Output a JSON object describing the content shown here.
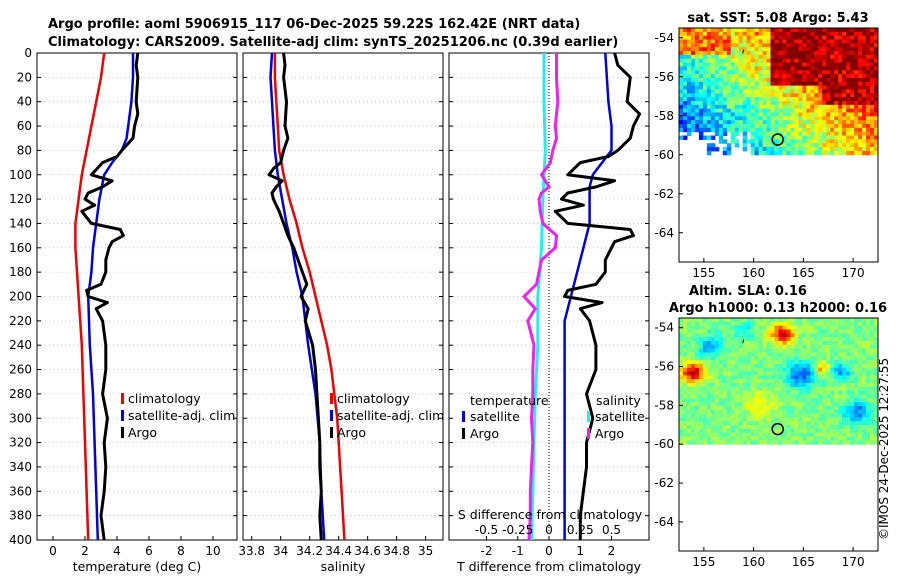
{
  "title": {
    "line1": "Argo profile: aoml 5906915_117 06-Dec-2025 59.22S 162.42E (NRT data)",
    "line2": "Climatology: CARS2009. Satellite-adj clim: synTS_20251206.nc (0.39d earlier)"
  },
  "colors": {
    "climatology": "#ee0000",
    "satellite": "#0000dd",
    "argo": "#000000",
    "sat_salinity": "#22eeee",
    "argo_salinity_diff": "#ee22ee"
  },
  "depth_ticks": [
    "0",
    "20",
    "40",
    "60",
    "80",
    "100",
    "120",
    "140",
    "160",
    "180",
    "200",
    "220",
    "240",
    "260",
    "280",
    "300",
    "320",
    "340",
    "360",
    "380",
    "400"
  ],
  "chart_data": [
    {
      "type": "line",
      "name": "temperature",
      "xlabel": "temperature (deg C)",
      "ylabel": "depth",
      "xlim": [
        -1,
        11.5
      ],
      "ylim": [
        400,
        0
      ],
      "xticks": [
        "0",
        "2",
        "4",
        "6",
        "8",
        "10"
      ],
      "legend": [
        "climatology",
        "satellite-adj. clim",
        "Argo"
      ],
      "series": [
        {
          "name": "climatology",
          "depth": [
            0,
            20,
            40,
            60,
            80,
            100,
            120,
            140,
            160,
            180,
            200,
            240,
            280,
            320,
            360,
            400
          ],
          "values": [
            3.2,
            3.0,
            2.7,
            2.4,
            2.1,
            1.8,
            1.6,
            1.4,
            1.4,
            1.5,
            1.6,
            1.8,
            1.9,
            2.0,
            2.1,
            2.2
          ]
        },
        {
          "name": "satellite-adj. clim",
          "depth": [
            0,
            20,
            40,
            60,
            70,
            80,
            90,
            100,
            120,
            140,
            160,
            180,
            200,
            240,
            280,
            320,
            360,
            400
          ],
          "values": [
            5.0,
            5.0,
            4.9,
            4.7,
            4.6,
            4.3,
            3.7,
            3.2,
            2.9,
            2.7,
            2.5,
            2.4,
            2.2,
            2.3,
            2.5,
            2.6,
            2.7,
            2.8
          ]
        },
        {
          "name": "Argo",
          "depth": [
            0,
            10,
            20,
            40,
            50,
            60,
            70,
            80,
            85,
            90,
            100,
            105,
            110,
            115,
            120,
            125,
            130,
            140,
            145,
            150,
            155,
            160,
            170,
            180,
            190,
            195,
            200,
            205,
            210,
            220,
            240,
            260,
            280,
            300,
            320,
            340,
            360,
            380,
            400
          ],
          "values": [
            5.3,
            5.2,
            5.3,
            5.2,
            5.3,
            5.1,
            5.0,
            4.3,
            4.0,
            3.1,
            2.4,
            3.7,
            3.1,
            2.2,
            2.0,
            2.6,
            1.8,
            2.4,
            4.2,
            4.4,
            3.7,
            3.5,
            3.3,
            3.3,
            3.0,
            2.1,
            2.2,
            3.4,
            2.7,
            3.1,
            3.3,
            3.3,
            3.1,
            3.4,
            3.2,
            3.3,
            3.2,
            3.0,
            3.2
          ]
        }
      ]
    },
    {
      "type": "line",
      "name": "salinity",
      "xlabel": "salinity",
      "ylabel": "depth",
      "xlim": [
        33.74,
        35.12
      ],
      "ylim": [
        400,
        0
      ],
      "xticks": [
        "33.8",
        "34",
        "34.2",
        "34.4",
        "34.6",
        "34.8",
        "35"
      ],
      "legend": [
        "climatology",
        "satellite-adj. clim",
        "Argo"
      ],
      "series": [
        {
          "name": "climatology",
          "depth": [
            0,
            20,
            40,
            60,
            80,
            100,
            120,
            140,
            160,
            180,
            200,
            220,
            240,
            260,
            280,
            300,
            320,
            340,
            360,
            380,
            400
          ],
          "values": [
            33.96,
            33.96,
            33.97,
            33.98,
            33.99,
            34.02,
            34.06,
            34.11,
            34.15,
            34.2,
            34.24,
            34.28,
            34.32,
            34.35,
            34.37,
            34.39,
            34.4,
            34.41,
            34.42,
            34.43,
            34.44
          ]
        },
        {
          "name": "satellite-adj. clim",
          "depth": [
            0,
            20,
            40,
            60,
            80,
            100,
            120,
            140,
            160,
            180,
            200,
            240,
            280,
            320,
            360,
            400
          ],
          "values": [
            33.94,
            33.93,
            33.94,
            33.95,
            33.96,
            33.98,
            34.01,
            34.04,
            34.08,
            34.11,
            34.15,
            34.19,
            34.24,
            34.27,
            34.28,
            34.3
          ]
        },
        {
          "name": "Argo",
          "depth": [
            0,
            10,
            20,
            40,
            60,
            70,
            80,
            90,
            95,
            100,
            105,
            110,
            115,
            120,
            130,
            140,
            150,
            160,
            170,
            180,
            190,
            200,
            210,
            220,
            240,
            260,
            280,
            300,
            320,
            340,
            360,
            380,
            400
          ],
          "values": [
            34.02,
            34.03,
            34.02,
            34.04,
            34.03,
            34.05,
            34.02,
            34.0,
            33.95,
            33.92,
            34.01,
            33.97,
            33.94,
            33.95,
            33.99,
            34.02,
            34.05,
            34.09,
            34.12,
            34.15,
            34.18,
            34.14,
            34.19,
            34.17,
            34.22,
            34.24,
            34.25,
            34.26,
            34.27,
            34.27,
            34.28,
            34.27,
            34.28
          ]
        }
      ]
    },
    {
      "type": "line",
      "name": "difference",
      "xlabel": "T difference from climatology",
      "xlabel_top": "S difference from climatology",
      "ylabel": "depth",
      "xlim": [
        -3.2,
        3.2
      ],
      "ylim": [
        400,
        0
      ],
      "xticks": [
        "-2",
        "-1",
        "0",
        "1",
        "2"
      ],
      "xticks_top": [
        "-0.5",
        "-0.25",
        "0",
        "0.25",
        "0.5"
      ],
      "legend_left_title": "temperature",
      "legend_right_title": "salinity",
      "legend_left": [
        "satellite",
        "Argo"
      ],
      "legend_right": [
        "satellite",
        "Argo"
      ],
      "series": [
        {
          "name": "T satellite",
          "depth": [
            0,
            40,
            60,
            80,
            100,
            110,
            120,
            140,
            160,
            200,
            220,
            240,
            280,
            320,
            360,
            400
          ],
          "values": [
            1.8,
            1.9,
            2.0,
            2.0,
            1.4,
            1.3,
            1.3,
            1.3,
            1.1,
            0.7,
            0.5,
            0.5,
            0.5,
            0.5,
            0.5,
            0.5
          ]
        },
        {
          "name": "T Argo",
          "depth": [
            0,
            10,
            20,
            40,
            50,
            60,
            70,
            80,
            85,
            90,
            100,
            105,
            110,
            115,
            120,
            125,
            130,
            140,
            145,
            150,
            155,
            160,
            170,
            180,
            190,
            195,
            200,
            205,
            210,
            220,
            240,
            260,
            280,
            300,
            320,
            340,
            360,
            380,
            400
          ],
          "values": [
            2.1,
            2.2,
            2.6,
            2.5,
            2.9,
            2.7,
            2.6,
            2.2,
            1.9,
            1.0,
            0.6,
            2.1,
            1.5,
            0.6,
            0.4,
            1.1,
            0.2,
            0.6,
            2.6,
            2.7,
            2.1,
            2.0,
            1.8,
            1.8,
            1.5,
            0.6,
            0.5,
            1.7,
            1.0,
            1.3,
            1.5,
            1.5,
            1.2,
            1.4,
            1.2,
            1.2,
            1.1,
            1.0,
            1.0
          ]
        },
        {
          "name": "S satellite",
          "depth": [
            0,
            40,
            80,
            120,
            160,
            200,
            240,
            280,
            320,
            360,
            400
          ],
          "values": [
            -0.04,
            -0.04,
            -0.03,
            -0.05,
            -0.06,
            -0.09,
            -0.09,
            -0.11,
            -0.12,
            -0.13,
            -0.14
          ]
        },
        {
          "name": "S Argo",
          "depth": [
            0,
            20,
            40,
            60,
            70,
            80,
            90,
            100,
            110,
            115,
            120,
            130,
            140,
            150,
            160,
            170,
            180,
            190,
            200,
            210,
            220,
            240,
            260,
            280,
            300,
            320,
            340,
            360,
            380,
            400
          ],
          "values": [
            0.06,
            0.06,
            0.07,
            0.05,
            0.06,
            0.03,
            0.01,
            -0.06,
            0.0,
            -0.06,
            -0.08,
            -0.07,
            -0.05,
            0.06,
            0.05,
            -0.06,
            -0.08,
            -0.1,
            -0.2,
            -0.11,
            -0.17,
            -0.12,
            -0.13,
            -0.13,
            -0.14,
            -0.13,
            -0.14,
            -0.15,
            -0.15,
            -0.16
          ]
        }
      ]
    },
    {
      "type": "heatmap",
      "name": "sst_map",
      "title": "sat. SST: 5.08 Argo: 5.43",
      "xticks": [
        "155",
        "160",
        "165",
        "170"
      ],
      "yticks": [
        "-54",
        "-56",
        "-58",
        "-60",
        "-62",
        "-64"
      ],
      "xlim": [
        152.5,
        172.5
      ],
      "ylim": [
        -65.5,
        -53.5
      ],
      "data_ylim": [
        -60,
        -53.5
      ],
      "marker": {
        "lon": 162.42,
        "lat": -59.22
      }
    },
    {
      "type": "heatmap",
      "name": "sla_map",
      "title_line1": "Altim. SLA: 0.16",
      "title_line2": "Argo h1000: 0.13 h2000: 0.16",
      "xticks": [
        "155",
        "160",
        "165",
        "170"
      ],
      "yticks": [
        "-54",
        "-56",
        "-58",
        "-60",
        "-62",
        "-64"
      ],
      "xlim": [
        152.5,
        172.5
      ],
      "ylim": [
        -65.5,
        -53.5
      ],
      "data_ylim": [
        -60,
        -53.5
      ],
      "marker": {
        "lon": 162.42,
        "lat": -59.22
      }
    }
  ],
  "footer": "©IMOS 24-Dec-2025 12:27:55"
}
